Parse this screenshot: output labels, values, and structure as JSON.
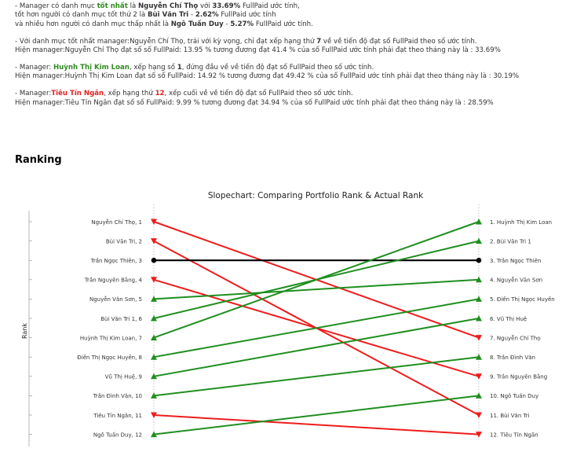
{
  "notes": {
    "p1": {
      "l1a": "- Manager có danh mục ",
      "l1b": "tốt nhất",
      "l1c": " là ",
      "l1d": "Nguyễn Chí Thọ",
      "l1e": " với ",
      "l1f": "33.69%",
      "l1g": " FullPaid ước tính,",
      "l2a": "tốt hơn người có danh mục tốt thứ 2 là ",
      "l2b": "Bùi Văn Tri",
      "l2c": " - ",
      "l2d": "2.62%",
      "l2e": " FullPaid ước tính",
      "l3a": "và nhiều hơn người có danh mục thấp nhất là ",
      "l3b": "Ngô Tuấn Duy",
      "l3c": " - ",
      "l3d": "5.27%",
      "l3e": " FullPaid ước tính."
    },
    "p2": {
      "l1a": "- Với danh mục tốt nhất manager:Nguyễn Chí Thọ, trái với kỳ vọng, chỉ đạt xếp hạng thứ ",
      "l1b": "7",
      "l1c": " về về tiến độ đạt số FullPaid theo số ước tính.",
      "l2": "Hiện manager:Nguyễn Chí Thọ đạt số số FullPaid: 13.95 % tương đương đạt 41.4 % của số FullPaid ước tính phải đạt theo tháng này là : 33.69%"
    },
    "p3": {
      "l1a": "- Manager: ",
      "l1b": "Huỳnh Thị Kim Loan",
      "l1c": ", xếp hạng số ",
      "l1d": "1",
      "l1e": ", đứng đầu về về tiến độ đạt số FullPaid theo số ước tính.",
      "l2": "Hiện manager:Huỳnh Thị Kim Loan đạt số số FullPaid: 14.92 % tương đương đạt 49.42 % của số FullPaid ước tính phải đạt theo tháng này là : 30.19%"
    },
    "p4": {
      "l1a": "- Manager:",
      "l1b": "Tiêu Tín Ngân",
      "l1c": ", xếp hạng thứ ",
      "l1d": "12",
      "l1e": ", xếp cuối về về tiến độ đạt số FullPaid theo số ước tính.",
      "l2": "Hiện manager:Tiêu Tín Ngân đạt số số FullPaid: 9.99 % tương đương đạt 34.94 % của số FullPaid ước tính phải đạt theo tháng này là : 28.59%"
    }
  },
  "heading": "Ranking",
  "colors": {
    "up": "#1f8f1f",
    "down": "#ee1c1c",
    "same": "#000000",
    "highlight_green": "#2e8b1e",
    "highlight_red": "#e02020"
  },
  "chart_data": {
    "type": "slope",
    "title": "Slopechart: Comparing Portfolio Rank & Actual Rank",
    "ylabel": "Rank",
    "ylim": [
      1,
      12
    ],
    "left_labels": [
      "Nguyễn Chí Thọ, 1",
      "Bùi Văn Tri, 2",
      "Trần Ngọc Thiên, 3",
      "Trần Nguyên Bằng, 4",
      "Nguyễn Văn Sơn, 5",
      "Bùi Văn Tri 1, 6",
      "Huỳnh Thị Kim Loan, 7",
      "Điền Thị Ngọc Huyền, 8",
      "Vũ Thị Huệ, 9",
      "Trần Đình Văn, 10",
      "Tiêu Tín Ngân, 11",
      "Ngô Tuấn Duy, 12"
    ],
    "right_labels": [
      "1. Huỳnh Thị Kim Loan",
      "2. Bùi Văn Tri 1",
      "3. Trần Ngọc Thiên",
      "4. Nguyễn Văn Sơn",
      "5. Điền Thị Ngọc Huyền",
      "6. Vũ Thị Huệ",
      "7. Nguyễn Chí Thọ",
      "8. Trần Đình Văn",
      "9. Trần Nguyên Bằng",
      "10. Ngô Tuấn Duy",
      "11. Bùi Văn Tri",
      "12. Tiêu Tín Ngân"
    ],
    "series": [
      {
        "name": "Nguyễn Chí Thọ",
        "portfolio_rank": 1,
        "actual_rank": 7
      },
      {
        "name": "Bùi Văn Tri",
        "portfolio_rank": 2,
        "actual_rank": 11
      },
      {
        "name": "Trần Ngọc Thiên",
        "portfolio_rank": 3,
        "actual_rank": 3
      },
      {
        "name": "Trần Nguyên Bằng",
        "portfolio_rank": 4,
        "actual_rank": 9
      },
      {
        "name": "Nguyễn Văn Sơn",
        "portfolio_rank": 5,
        "actual_rank": 4
      },
      {
        "name": "Bùi Văn Tri 1",
        "portfolio_rank": 6,
        "actual_rank": 2
      },
      {
        "name": "Huỳnh Thị Kim Loan",
        "portfolio_rank": 7,
        "actual_rank": 1
      },
      {
        "name": "Điền Thị Ngọc Huyền",
        "portfolio_rank": 8,
        "actual_rank": 5
      },
      {
        "name": "Vũ Thị Huệ",
        "portfolio_rank": 9,
        "actual_rank": 6
      },
      {
        "name": "Trần Đình Văn",
        "portfolio_rank": 10,
        "actual_rank": 8
      },
      {
        "name": "Tiêu Tín Ngân",
        "portfolio_rank": 11,
        "actual_rank": 12
      },
      {
        "name": "Ngô Tuấn Duy",
        "portfolio_rank": 12,
        "actual_rank": 10
      }
    ]
  }
}
